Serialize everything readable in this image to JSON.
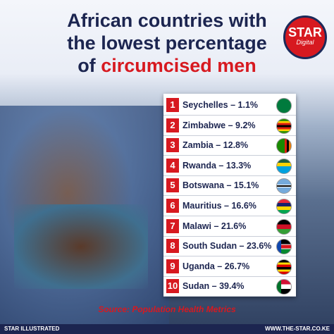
{
  "header": {
    "title_line1": "African countries with",
    "title_line2": "the lowest percentage",
    "title_line3_prefix": "of",
    "title_line3_highlight": "circumcised men"
  },
  "logo": {
    "name": "STAR",
    "sub": "Digital"
  },
  "list": [
    {
      "rank": "1",
      "label": "Seychelles – 1.1%"
    },
    {
      "rank": "2",
      "label": "Zimbabwe – 9.2%"
    },
    {
      "rank": "3",
      "label": "Zambia – 12.8%"
    },
    {
      "rank": "4",
      "label": "Rwanda – 13.3%"
    },
    {
      "rank": "5",
      "label": "Botswana – 15.1%"
    },
    {
      "rank": "6",
      "label": "Mauritius – 16.6%"
    },
    {
      "rank": "7",
      "label": "Malawi – 21.6%"
    },
    {
      "rank": "8",
      "label": "South Sudan – 23.6%"
    },
    {
      "rank": "9",
      "label": "Uganda – 26.7%"
    },
    {
      "rank": "10",
      "label": "Sudan – 39.4%"
    }
  ],
  "source": "Source: Population Health Metrics",
  "footer": {
    "left": "STAR ILLUSTRATED",
    "right": "WWW.THE-STAR.CO.KE"
  }
}
